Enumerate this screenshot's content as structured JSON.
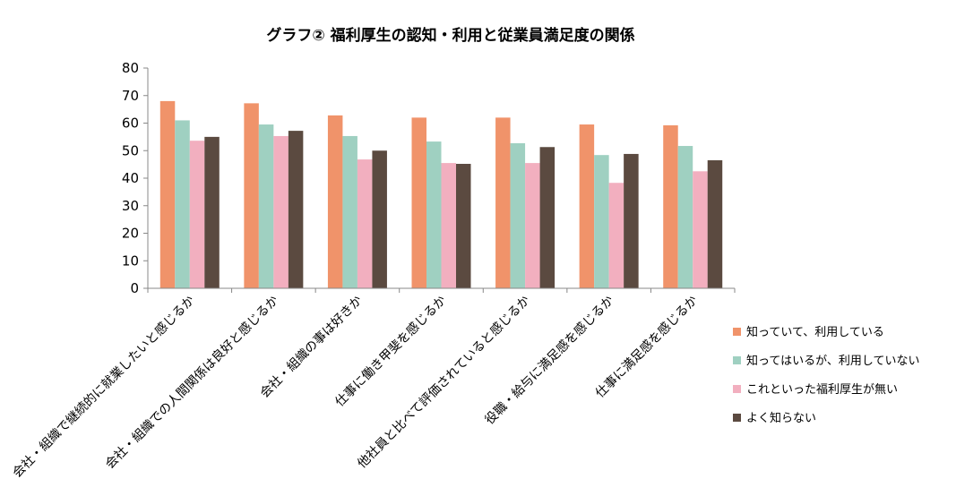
{
  "chart_data": {
    "type": "bar",
    "title": "グラフ② 福利厚生の認知・利用と従業員満足度の関係",
    "xlabel": "",
    "ylabel": "",
    "ylim": [
      0,
      80
    ],
    "yticks": [
      0,
      10,
      20,
      30,
      40,
      50,
      60,
      70,
      80
    ],
    "grid": false,
    "legend": "right",
    "categories": [
      "会社・組織で継続的に就業したいと感じるか",
      "会社・組織での人間関係は良好と感じるか",
      "会社・組織の事は好きか",
      "仕事に働き甲斐を感じるか",
      "他社員と比べて評価されていると感じるか",
      "役職・給与に満足感を感じるか",
      "仕事に満足感を感じるか"
    ],
    "series": [
      {
        "name": "知っていて、利用している",
        "color": "#F0936A",
        "values": [
          68,
          67.2,
          62.8,
          62,
          62,
          59.5,
          59.2
        ]
      },
      {
        "name": "知ってはいるが、利用していない",
        "color": "#9FD0C1",
        "values": [
          61,
          59.5,
          55.3,
          53.3,
          52.7,
          48.4,
          51.7
        ]
      },
      {
        "name": "これといった福利厚生が無い",
        "color": "#F2AFBF",
        "values": [
          53.6,
          55.3,
          46.8,
          45.5,
          45.5,
          38.3,
          42.5
        ]
      },
      {
        "name": "よく知らない",
        "color": "#5B4A40",
        "values": [
          55,
          57.2,
          50,
          45.2,
          51.3,
          48.8,
          46.5
        ]
      }
    ]
  }
}
